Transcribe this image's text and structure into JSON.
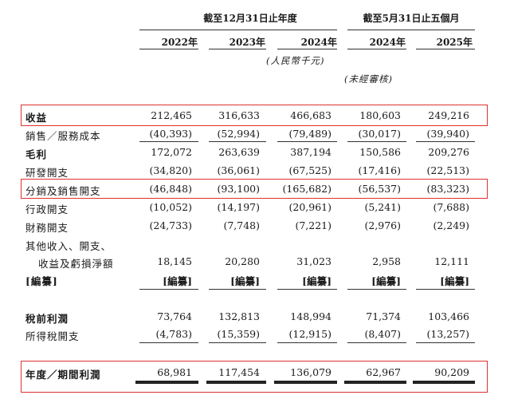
{
  "header": {
    "group_year_end": "截至12月31日止年度",
    "group_five_months": "截至5月31日止五個月",
    "years": [
      "2022年",
      "2023年",
      "2024年",
      "2024年",
      "2025年"
    ],
    "unit": "(人民幣千元)",
    "unaudited": "(未經審核)"
  },
  "rows": [
    {
      "label": "收益",
      "values": [
        "212,465",
        "316,633",
        "466,683",
        "180,603",
        "249,216"
      ]
    },
    {
      "label": "銷售／服務成本",
      "values": [
        "(40,393)",
        "(52,994)",
        "(79,489)",
        "(30,017)",
        "(39,940)"
      ]
    },
    {
      "label": "毛利",
      "values": [
        "172,072",
        "263,639",
        "387,194",
        "150,586",
        "209,276"
      ]
    },
    {
      "label": "研發開支",
      "values": [
        "(34,820)",
        "(36,061)",
        "(67,525)",
        "(17,416)",
        "(22,513)"
      ]
    },
    {
      "label": "分銷及銷售開支",
      "values": [
        "(46,848)",
        "(93,100)",
        "(165,682)",
        "(56,537)",
        "(83,323)"
      ]
    },
    {
      "label": "行政開支",
      "values": [
        "(10,052)",
        "(14,197)",
        "(20,961)",
        "(5,241)",
        "(7,688)"
      ]
    },
    {
      "label": "財務開支",
      "values": [
        "(24,733)",
        "(7,748)",
        "(7,221)",
        "(2,976)",
        "(2,249)"
      ]
    },
    {
      "label": "其他收入、開支、",
      "values": []
    },
    {
      "label": "收益及虧損淨額",
      "values": [
        "18,145",
        "20,280",
        "31,023",
        "2,958",
        "12,111"
      ]
    },
    {
      "label": "[編纂]",
      "values": [
        "[編纂]",
        "[編纂]",
        "[編纂]",
        "[編纂]",
        "[編纂]"
      ]
    },
    {
      "label": "稅前利潤",
      "values": [
        "73,764",
        "132,813",
        "148,994",
        "71,374",
        "103,466"
      ]
    },
    {
      "label": "所得稅開支",
      "values": [
        "(4,783)",
        "(15,359)",
        "(12,915)",
        "(8,407)",
        "(13,257)"
      ]
    },
    {
      "label": "年度／期間利潤",
      "values": [
        "68,981",
        "117,454",
        "136,079",
        "62,967",
        "90,209"
      ]
    }
  ]
}
